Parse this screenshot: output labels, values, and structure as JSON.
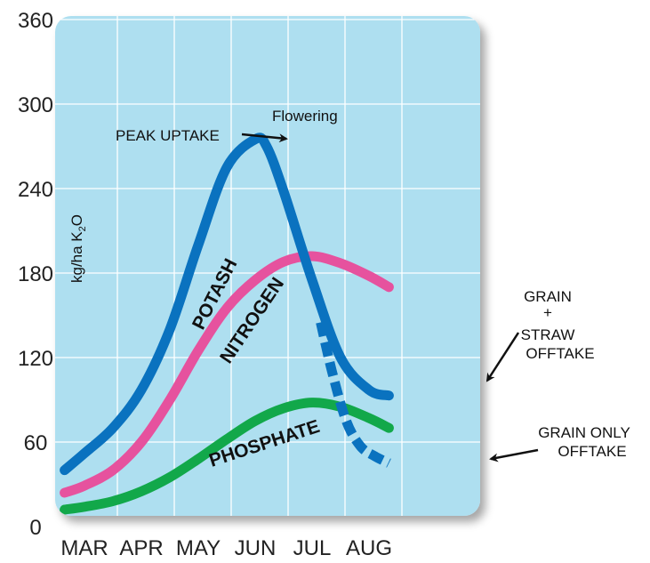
{
  "chart_data": {
    "type": "line",
    "title": "",
    "xlabel": "",
    "ylabel": "kg/ha K",
    "ylabel_sub": "2",
    "ylabel_tail": "O",
    "ylim": [
      0,
      360
    ],
    "yticks": [
      "0",
      "60",
      "120",
      "180",
      "240",
      "300",
      "360"
    ],
    "xticks": [
      "MAR",
      "APR",
      "MAY",
      "JUN",
      "JUL",
      "AUG"
    ],
    "grid": true,
    "colors": {
      "panel": "#aedff0",
      "grid": "#ffffff",
      "potash": "#0a72bf",
      "nitrogen": "#e6529e",
      "phosphate": "#12a84a"
    },
    "x_unit": "month index (0 = MAR, 5 = AUG)",
    "series": [
      {
        "name": "POTASH",
        "color": "#0a72bf",
        "x": [
          -0.35,
          0.0,
          0.5,
          1.0,
          1.5,
          2.0,
          2.5,
          3.0,
          3.2,
          3.5,
          4.0,
          4.5,
          5.0,
          5.35
        ],
        "y": [
          40,
          52,
          70,
          97,
          140,
          200,
          255,
          275,
          270,
          238,
          175,
          120,
          97,
          93
        ]
      },
      {
        "name": "POTASH (grain only)",
        "dashed": true,
        "color": "#0a72bf",
        "x": [
          4.15,
          4.35,
          4.6,
          4.85,
          5.1,
          5.35
        ],
        "y": [
          145,
          110,
          75,
          57,
          50,
          45
        ]
      },
      {
        "name": "NITROGEN",
        "color": "#e6529e",
        "x": [
          -0.35,
          0.0,
          0.5,
          1.0,
          1.5,
          2.0,
          2.5,
          3.0,
          3.5,
          4.0,
          4.5,
          5.0,
          5.35
        ],
        "y": [
          24,
          29,
          40,
          60,
          90,
          125,
          155,
          175,
          188,
          192,
          187,
          178,
          170
        ]
      },
      {
        "name": "PHOSPHATE",
        "color": "#12a84a",
        "x": [
          -0.35,
          0.0,
          0.5,
          1.0,
          1.5,
          2.0,
          2.5,
          3.0,
          3.5,
          4.0,
          4.5,
          5.0,
          5.35
        ],
        "y": [
          12,
          14,
          18,
          25,
          35,
          48,
          62,
          75,
          84,
          88,
          85,
          77,
          70
        ]
      }
    ],
    "annotations": {
      "flowering": "Flowering",
      "peak_uptake": "PEAK UPTAKE",
      "grain_straw_1": "GRAIN",
      "grain_straw_2": "+",
      "grain_straw_3": "STRAW",
      "grain_straw_4": "OFFTAKE",
      "grain_only_1": "GRAIN ONLY",
      "grain_only_2": "OFFTAKE"
    }
  }
}
